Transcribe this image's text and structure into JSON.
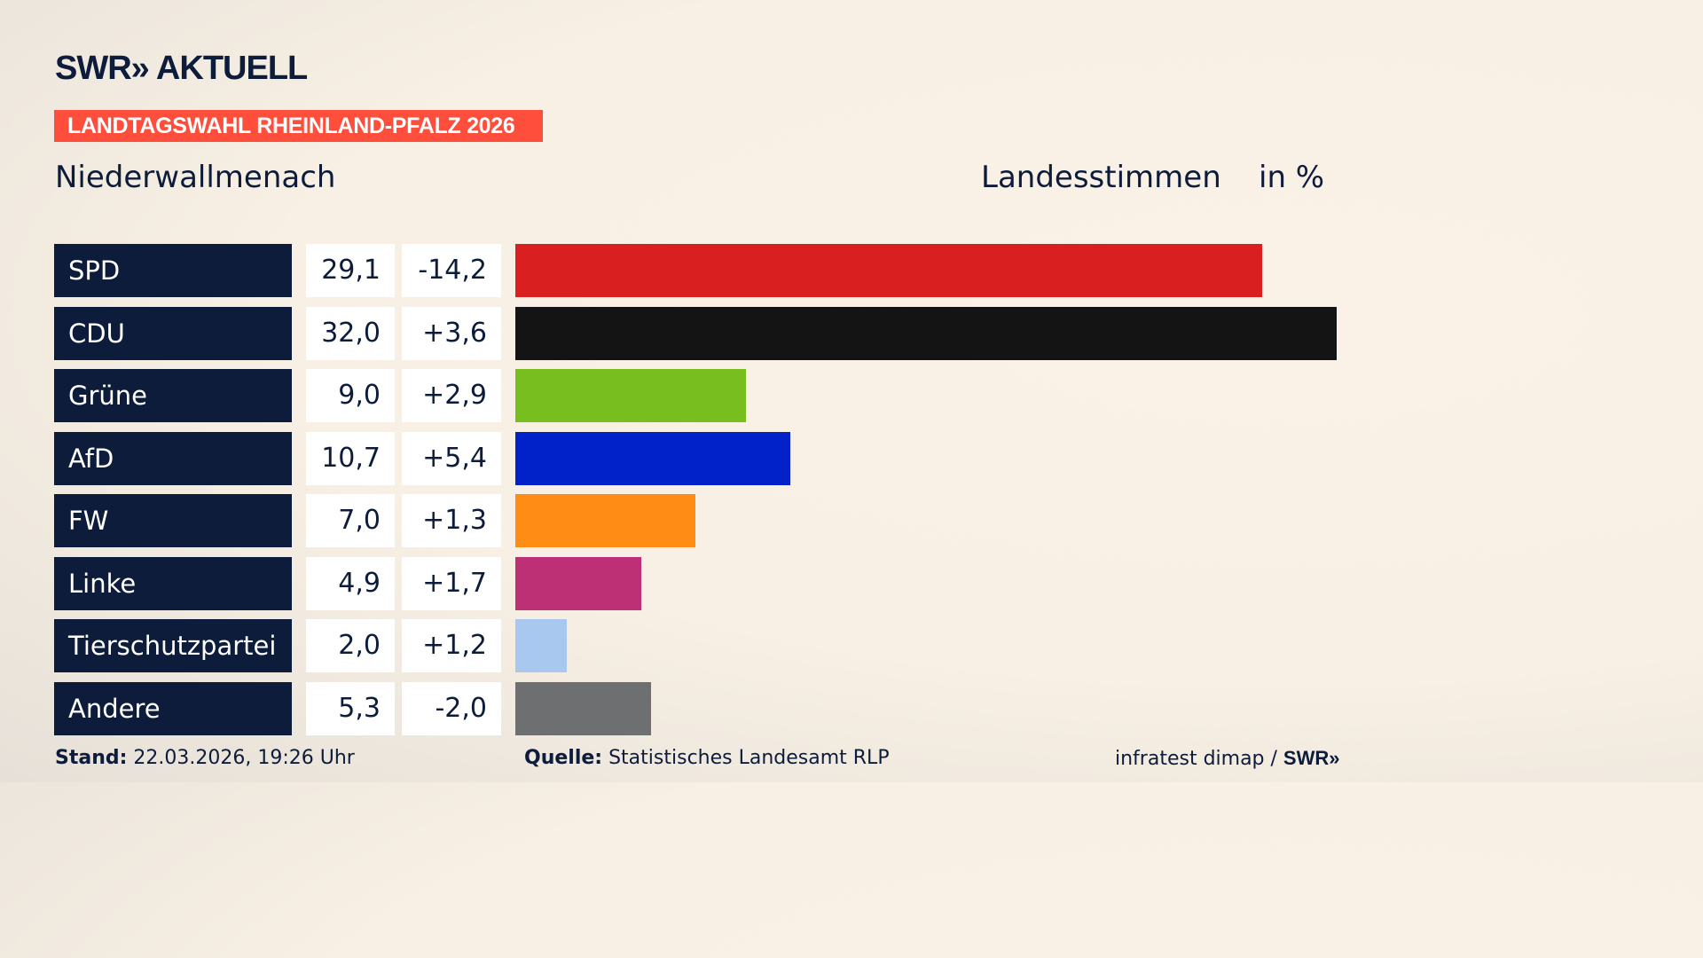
{
  "header": {
    "logo": "SWR» AKTUELL",
    "badge": "LANDTAGSWAHL RHEINLAND-PFALZ 2026",
    "region": "Niederwallmenach",
    "vote_type": "Landesstimmen",
    "unit": "in %"
  },
  "chart_data": {
    "type": "bar",
    "orientation": "horizontal",
    "categories": [
      "SPD",
      "CDU",
      "Grüne",
      "AfD",
      "FW",
      "Linke",
      "Tierschutzpartei",
      "Andere"
    ],
    "values": [
      29.1,
      32.0,
      9.0,
      10.7,
      7.0,
      4.9,
      2.0,
      5.3
    ],
    "value_labels": [
      "29,1",
      "32,0",
      "9,0",
      "10,7",
      "7,0",
      "4,9",
      "2,0",
      "5,3"
    ],
    "diff_labels": [
      "-14,2",
      "+3,6",
      "+2,9",
      "+5,4",
      "+1,3",
      "+1,7",
      "+1,2",
      "-2,0"
    ],
    "colors": [
      "#d91f20",
      "#141414",
      "#78be1e",
      "#0022c8",
      "#ff8c14",
      "#bd3075",
      "#a9c8f0",
      "#6e6f71"
    ],
    "xlim": [
      0,
      32.0
    ]
  },
  "footer": {
    "stand_label": "Stand:",
    "stand_value": "22.03.2026, 19:26 Uhr",
    "source_label": "Quelle:",
    "source_value": "Statistisches Landesamt RLP",
    "credit": "infratest dimap / ",
    "credit_logo": "SWR»"
  }
}
